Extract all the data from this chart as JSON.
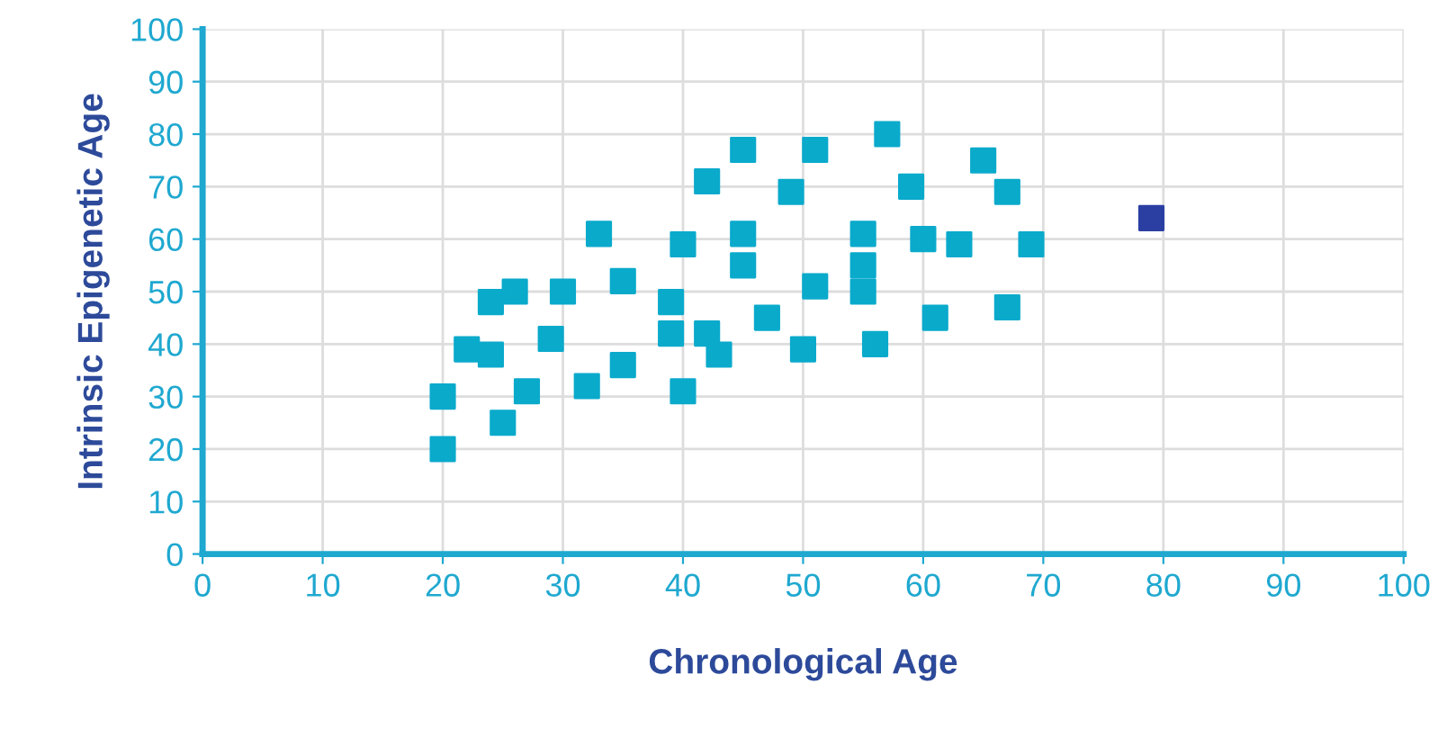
{
  "chart_data": {
    "type": "scatter",
    "xlabel": "Chronological Age",
    "ylabel": "Intrinsic Epigenetic Age",
    "series": [
      {
        "color": "#0aaacb",
        "x": [
          20,
          20,
          22,
          24,
          24,
          26,
          25,
          27,
          29,
          30,
          32,
          33,
          35,
          35,
          39,
          39,
          40,
          40,
          42,
          42,
          43,
          45,
          45,
          45,
          47,
          49,
          50,
          51,
          51,
          55,
          55,
          55,
          56,
          57,
          59,
          60,
          61,
          63,
          65,
          67,
          67,
          69
        ],
        "values": [
          20,
          30,
          39,
          48,
          38,
          50,
          25,
          31,
          41,
          50,
          32,
          61,
          52,
          36,
          48,
          42,
          59,
          31,
          71,
          42,
          38,
          77,
          61,
          55,
          45,
          69,
          39,
          77,
          51,
          61,
          55,
          50,
          40,
          80,
          70,
          60,
          45,
          59,
          75,
          69,
          47,
          59
        ]
      },
      {
        "color": "#2b3fa3",
        "x": [
          79
        ],
        "values": [
          64
        ]
      }
    ],
    "marker": "square",
    "xlim": [
      0,
      100
    ],
    "ylim": [
      0,
      100
    ],
    "xticks": [
      0,
      10,
      20,
      30,
      40,
      50,
      60,
      70,
      80,
      90,
      100
    ],
    "yticks": [
      0,
      10,
      20,
      30,
      40,
      50,
      60,
      70,
      80,
      90,
      100
    ],
    "grid": true,
    "legend": false
  }
}
